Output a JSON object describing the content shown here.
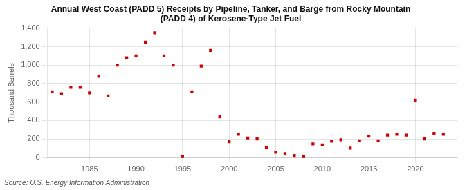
{
  "chart_data": {
    "type": "scatter",
    "title": "Annual West Coast (PADD 5) Receipts by Pipeline, Tanker, and Barge from Rocky Mountain\n(PADD 4) of Kerosene-Type Jet Fuel",
    "ylabel": "Thousand Barrels",
    "annotation": "Source: U.S. Energy Information Administration",
    "x": [
      1981,
      1982,
      1983,
      1984,
      1985,
      1986,
      1987,
      1988,
      1989,
      1990,
      1991,
      1992,
      1993,
      1994,
      1995,
      1996,
      1997,
      1998,
      1999,
      2000,
      2001,
      2002,
      2003,
      2004,
      2005,
      2006,
      2007,
      2008,
      2009,
      2010,
      2011,
      2012,
      2013,
      2014,
      2015,
      2016,
      2017,
      2018,
      2019,
      2020,
      2021,
      2022,
      2023
    ],
    "values": [
      710,
      690,
      760,
      760,
      700,
      880,
      665,
      1000,
      1080,
      1100,
      1250,
      1350,
      1100,
      1000,
      10,
      710,
      990,
      1160,
      440,
      170,
      250,
      210,
      200,
      110,
      55,
      40,
      20,
      10,
      145,
      135,
      175,
      190,
      100,
      180,
      230,
      180,
      240,
      250,
      240,
      620,
      200,
      260,
      250
    ],
    "color": "#cc0000",
    "marker": "square",
    "xlim": [
      1980.5,
      2024.5
    ],
    "xticks": [
      1985,
      1990,
      1995,
      2000,
      2005,
      2010,
      2015,
      2020
    ],
    "ylim": [
      0,
      1400
    ],
    "yticks": [
      0,
      200,
      400,
      600,
      800,
      {
        "value": 1000,
        "label": "1,000"
      },
      {
        "value": 1200,
        "label": "1,200"
      },
      {
        "value": 1400,
        "label": "1,400"
      }
    ],
    "grid": true
  }
}
